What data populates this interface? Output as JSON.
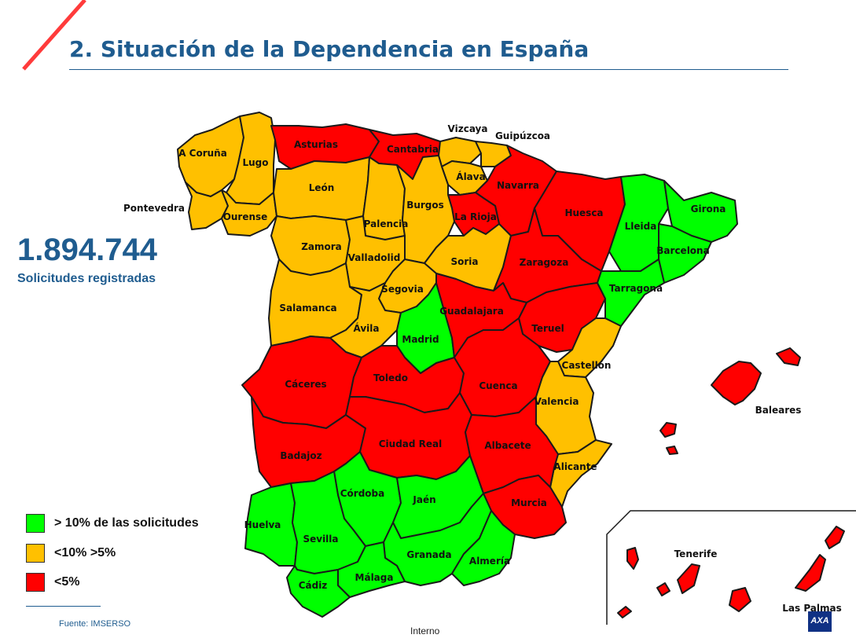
{
  "title": "2. Situación de la Dependencia en España",
  "stat": {
    "value": "1.894.744",
    "label": "Solicitudes registradas"
  },
  "legend": [
    {
      "label": "> 10% de las solicitudes",
      "color": "#00ff00"
    },
    {
      "label": "<10% >5%",
      "color": "#ffc000"
    },
    {
      "label": "<5%",
      "color": "#ff0000"
    }
  ],
  "colors": {
    "green": "#00ff00",
    "orange": "#ffc000",
    "red": "#ff0000",
    "brand": "#1f5c8f",
    "accent": "#ff3b3b"
  },
  "source": "Fuente: IMSERSO",
  "footer": "Interno",
  "logo": "AXA",
  "provinces": [
    {
      "name": "A Coruña",
      "tier": "orange"
    },
    {
      "name": "Lugo",
      "tier": "orange"
    },
    {
      "name": "Pontevedra",
      "tier": "orange"
    },
    {
      "name": "Ourense",
      "tier": "orange"
    },
    {
      "name": "Asturias",
      "tier": "red"
    },
    {
      "name": "Cantabria",
      "tier": "red"
    },
    {
      "name": "Vizcaya",
      "tier": "orange"
    },
    {
      "name": "Guipúzcoa",
      "tier": "orange"
    },
    {
      "name": "Álava",
      "tier": "orange"
    },
    {
      "name": "Navarra",
      "tier": "red"
    },
    {
      "name": "La Rioja",
      "tier": "red"
    },
    {
      "name": "León",
      "tier": "orange"
    },
    {
      "name": "Palencia",
      "tier": "orange"
    },
    {
      "name": "Burgos",
      "tier": "orange"
    },
    {
      "name": "Zamora",
      "tier": "orange"
    },
    {
      "name": "Valladolid",
      "tier": "orange"
    },
    {
      "name": "Soria",
      "tier": "orange"
    },
    {
      "name": "Segovia",
      "tier": "orange"
    },
    {
      "name": "Salamanca",
      "tier": "orange"
    },
    {
      "name": "Ávila",
      "tier": "orange"
    },
    {
      "name": "Huesca",
      "tier": "red"
    },
    {
      "name": "Zaragoza",
      "tier": "red"
    },
    {
      "name": "Teruel",
      "tier": "red"
    },
    {
      "name": "Lleida",
      "tier": "green"
    },
    {
      "name": "Girona",
      "tier": "green"
    },
    {
      "name": "Barcelona",
      "tier": "green"
    },
    {
      "name": "Tarragona",
      "tier": "green"
    },
    {
      "name": "Madrid",
      "tier": "green"
    },
    {
      "name": "Guadalajara",
      "tier": "red"
    },
    {
      "name": "Cáceres",
      "tier": "red"
    },
    {
      "name": "Toledo",
      "tier": "red"
    },
    {
      "name": "Cuenca",
      "tier": "red"
    },
    {
      "name": "Castellón",
      "tier": "orange"
    },
    {
      "name": "Valencia",
      "tier": "orange"
    },
    {
      "name": "Alicante",
      "tier": "orange"
    },
    {
      "name": "Badajoz",
      "tier": "red"
    },
    {
      "name": "Ciudad Real",
      "tier": "red"
    },
    {
      "name": "Albacete",
      "tier": "red"
    },
    {
      "name": "Murcia",
      "tier": "red"
    },
    {
      "name": "Córdoba",
      "tier": "green"
    },
    {
      "name": "Jaén",
      "tier": "green"
    },
    {
      "name": "Huelva",
      "tier": "green"
    },
    {
      "name": "Sevilla",
      "tier": "green"
    },
    {
      "name": "Granada",
      "tier": "green"
    },
    {
      "name": "Almería",
      "tier": "green"
    },
    {
      "name": "Málaga",
      "tier": "green"
    },
    {
      "name": "Cádiz",
      "tier": "green"
    },
    {
      "name": "Baleares",
      "tier": "red"
    },
    {
      "name": "Tenerife",
      "tier": "red"
    },
    {
      "name": "Las Palmas",
      "tier": "red"
    }
  ]
}
